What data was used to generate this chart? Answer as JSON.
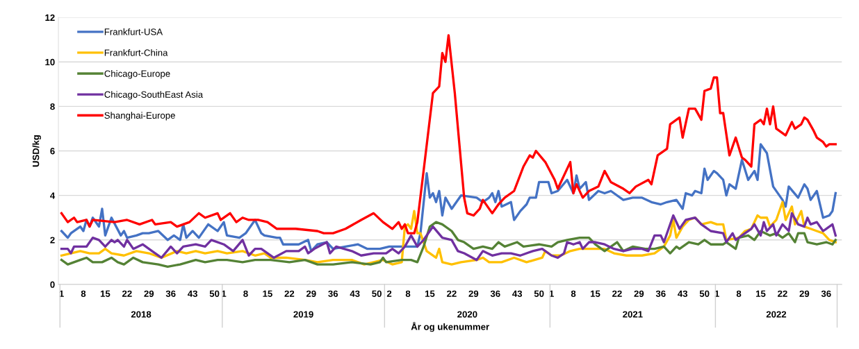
{
  "chart_data": {
    "type": "line",
    "xlabel": "År og ukenummer",
    "ylabel": "USD/kg",
    "ylim": [
      0,
      12
    ],
    "yticks": [
      0,
      2,
      4,
      6,
      8,
      10,
      12
    ],
    "categories": [
      "1",
      null,
      null,
      null,
      null,
      null,
      null,
      "8",
      null,
      null,
      null,
      null,
      null,
      null,
      "15",
      null,
      null,
      null,
      null,
      null,
      null,
      "22",
      null,
      null,
      null,
      null,
      null,
      null,
      "29",
      null,
      null,
      null,
      null,
      null,
      null,
      "36",
      null,
      null,
      null,
      null,
      null,
      null,
      "43",
      null,
      null,
      null,
      null,
      null,
      null,
      "50",
      null,
      null,
      "1",
      null,
      null,
      null,
      null,
      null,
      null,
      "8",
      null,
      null,
      null,
      null,
      null,
      null,
      "15",
      null,
      null,
      null,
      null,
      null,
      null,
      "22",
      null,
      null,
      null,
      null,
      null,
      null,
      "29",
      null,
      null,
      null,
      null,
      null,
      null,
      "36",
      null,
      null,
      null,
      null,
      null,
      null,
      "43",
      null,
      null,
      null,
      null,
      null,
      null,
      "50",
      null,
      null,
      null,
      "2",
      null,
      null,
      null,
      null,
      null,
      "8",
      null,
      null,
      null,
      null,
      null,
      null,
      "15",
      null,
      null,
      null,
      null,
      null,
      null,
      "22",
      null,
      null,
      null,
      null,
      null,
      null,
      "29",
      null,
      null,
      null,
      null,
      null,
      null,
      "36",
      null,
      null,
      null,
      null,
      null,
      null,
      "43",
      null,
      null,
      null,
      null,
      null,
      null,
      "50",
      null,
      null,
      null,
      "1",
      null,
      null,
      null,
      null,
      null,
      null,
      "8",
      null,
      null,
      null,
      null,
      null,
      null,
      "15",
      null,
      null,
      null,
      null,
      null,
      null,
      "22",
      null,
      null,
      null,
      null,
      null,
      null,
      "29",
      null,
      null,
      null,
      null,
      null,
      null,
      "36",
      null,
      null,
      null,
      null,
      null,
      null,
      "43",
      null,
      null,
      null,
      null,
      null,
      null,
      "50",
      null,
      null,
      null,
      "1",
      null,
      null,
      null,
      null,
      null,
      null,
      "8",
      null,
      null,
      null,
      null,
      null,
      null,
      "15",
      null,
      null,
      null,
      null,
      null,
      null,
      "22",
      null,
      null,
      null,
      null,
      null,
      null,
      "29",
      null,
      null,
      null,
      null,
      null,
      null,
      "36",
      null,
      null,
      null
    ],
    "annotations": [
      "2018",
      "2019",
      "2020",
      "2021",
      "2022"
    ],
    "grid": "y",
    "legend": "top left",
    "marker": "none",
    "line_style": "solid",
    "series": [
      {
        "name": "Frankfurt-USA",
        "color": "#4472c4",
        "values": [
          2.4,
          null,
          2.1,
          2.3,
          null,
          null,
          2.6,
          2.4,
          2.9,
          2.6,
          3.0,
          null,
          2.6,
          3.4,
          2.2,
          null,
          3.0,
          null,
          null,
          2.2,
          2.4,
          2.1,
          null,
          null,
          2.2,
          null,
          2.3,
          null,
          2.3,
          null,
          null,
          2.4,
          null,
          null,
          2.0,
          null,
          2.2,
          null,
          2.0,
          2.7,
          2.1,
          null,
          2.4,
          null,
          2.1,
          null,
          null,
          2.7,
          null,
          null,
          2.4,
          null,
          2.8,
          2.2,
          null,
          null,
          null,
          2.1,
          null,
          2.3,
          null,
          null,
          2.9,
          null,
          2.3,
          2.2,
          null,
          null,
          null,
          2.1,
          2.1,
          1.8,
          null,
          null,
          1.8,
          null,
          1.8,
          null,
          null,
          2.0,
          1.5,
          null,
          1.8,
          null,
          null,
          1.9,
          null,
          1.6,
          null,
          null,
          null,
          1.7,
          null,
          null,
          null,
          1.8,
          null,
          null,
          1.6,
          null,
          null,
          null,
          1.6,
          null,
          null,
          1.7,
          null,
          null,
          1.7,
          null,
          null,
          null,
          1.7,
          null,
          1.7,
          2.3,
          null,
          5.0,
          3.9,
          4.1,
          3.7,
          4.2,
          3.1,
          3.9,
          null,
          3.4,
          3.6,
          null,
          4.0,
          null,
          null,
          null,
          null,
          3.9,
          null,
          3.7,
          null,
          3.9,
          4.1,
          3.7,
          4.2,
          3.5,
          null,
          null,
          3.7,
          2.9,
          null,
          3.3,
          null,
          3.6,
          3.9,
          null,
          3.9,
          4.6,
          null,
          null,
          4.6,
          4.1,
          null,
          4.2,
          null,
          null,
          4.7,
          null,
          4.1,
          4.9,
          4.3,
          null,
          4.6,
          3.8,
          null,
          null,
          4.2,
          null,
          4.1,
          null,
          4.2,
          null,
          null,
          null,
          3.8,
          null,
          null,
          3.9,
          null,
          null,
          3.9,
          null,
          null,
          3.7,
          null,
          null,
          3.6,
          null,
          3.7,
          null,
          null,
          3.8,
          null,
          3.4,
          4.1,
          null,
          4.0,
          4.2,
          null,
          4.1,
          5.2,
          4.7,
          null,
          5.1,
          5.0,
          null,
          4.7,
          4.0,
          4.5,
          null,
          4.3,
          null,
          5.6,
          null,
          4.7,
          null,
          5.1,
          4.7,
          6.3,
          null,
          5.9,
          null,
          4.4,
          null,
          null,
          3.8,
          3.5,
          4.4,
          null,
          null,
          3.9,
          null,
          4.5,
          4.3,
          3.8,
          null,
          4.2,
          null,
          3.0,
          null,
          3.1,
          3.3,
          4.1
        ]
      },
      {
        "name": "Frankfurt-China",
        "color": "#ffc000",
        "values": [
          1.3,
          null,
          null,
          1.4,
          null,
          null,
          1.5,
          null,
          null,
          1.4,
          null,
          null,
          1.4,
          null,
          1.6,
          null,
          1.4,
          null,
          null,
          null,
          1.3,
          null,
          null,
          null,
          1.5,
          null,
          null,
          null,
          1.4,
          null,
          null,
          null,
          1.2,
          null,
          null,
          null,
          null,
          1.5,
          null,
          null,
          1.4,
          null,
          null,
          1.5,
          null,
          null,
          1.4,
          null,
          null,
          null,
          1.5,
          null,
          null,
          1.4,
          null,
          null,
          null,
          null,
          1.5,
          null,
          null,
          null,
          1.3,
          null,
          null,
          1.4,
          null,
          1.2,
          null,
          null,
          null,
          null,
          1.2,
          null,
          null,
          null,
          null,
          null,
          1.1,
          null,
          null,
          null,
          1.0,
          null,
          null,
          null,
          null,
          1.1,
          null,
          null,
          null,
          null,
          null,
          1.1,
          null,
          null,
          null,
          0.9,
          null,
          null,
          1.0,
          null,
          null,
          1.1,
          null,
          null,
          0.9,
          null,
          null,
          1.0,
          2.6,
          2.7,
          2.5,
          3.3,
          2.3,
          2.3,
          null,
          1.5,
          null,
          null,
          1.2,
          1.6,
          1.0,
          null,
          null,
          0.9,
          null,
          null,
          1.0,
          null,
          null,
          null,
          null,
          1.1,
          null,
          1.2,
          null,
          1.0,
          null,
          null,
          null,
          1.0,
          null,
          null,
          null,
          1.2,
          null,
          null,
          null,
          1.0,
          null,
          null,
          null,
          null,
          1.2,
          1.5,
          null,
          1.3,
          null,
          null,
          1.3,
          null,
          null,
          1.5,
          null,
          null,
          1.6,
          null,
          null,
          null,
          1.6,
          null,
          null,
          null,
          1.6,
          null,
          null,
          1.4,
          null,
          null,
          null,
          1.3,
          null,
          null,
          null,
          null,
          1.3,
          null,
          null,
          null,
          1.4,
          null,
          null,
          1.7,
          null,
          2.2,
          2.9,
          2.1,
          null,
          2.6,
          null,
          2.9,
          null,
          3.0,
          null,
          2.7,
          null,
          null,
          2.8,
          null,
          2.7,
          null,
          2.7,
          2.0,
          null,
          null,
          null,
          2.1,
          null,
          2.4,
          null,
          2.5,
          null,
          3.1,
          3.0,
          null,
          3.0,
          2.6,
          null,
          2.9,
          null,
          3.7,
          2.9,
          null,
          3.5,
          2.7,
          null,
          3.3,
          2.6,
          null,
          2.5,
          null,
          2.4,
          null,
          2.3,
          null,
          2.0,
          null,
          1.9
        ]
      },
      {
        "name": "Chicago-Europe",
        "color": "#548235",
        "values": [
          1.1,
          null,
          0.9,
          null,
          null,
          null,
          1.1,
          null,
          1.2,
          null,
          1.0,
          null,
          null,
          1.0,
          null,
          null,
          1.2,
          null,
          1.0,
          null,
          0.9,
          null,
          null,
          1.2,
          null,
          null,
          1.0,
          null,
          null,
          null,
          null,
          0.9,
          null,
          null,
          0.8,
          null,
          null,
          null,
          0.9,
          null,
          null,
          null,
          null,
          1.1,
          null,
          null,
          1.0,
          null,
          null,
          null,
          1.1,
          null,
          null,
          1.1,
          null,
          null,
          null,
          null,
          1.0,
          null,
          null,
          null,
          1.1,
          null,
          null,
          null,
          null,
          1.1,
          null,
          null,
          null,
          null,
          null,
          1.0,
          null,
          null,
          null,
          null,
          1.1,
          null,
          null,
          null,
          0.9,
          null,
          null,
          null,
          null,
          0.9,
          null,
          null,
          null,
          null,
          null,
          1.0,
          null,
          null,
          null,
          null,
          null,
          0.9,
          null,
          null,
          1.0,
          1.2,
          1.0,
          null,
          null,
          null,
          null,
          1.1,
          null,
          null,
          1.1,
          null,
          1.0,
          null,
          1.7,
          null,
          2.6,
          null,
          2.8,
          null,
          2.7,
          null,
          null,
          2.4,
          null,
          2.0,
          null,
          1.9,
          null,
          null,
          1.6,
          null,
          null,
          1.7,
          null,
          null,
          1.6,
          null,
          1.9,
          null,
          1.7,
          null,
          null,
          null,
          1.9,
          null,
          1.7,
          null,
          null,
          null,
          null,
          1.8,
          null,
          null,
          null,
          1.7,
          null,
          1.9,
          null,
          null,
          2.0,
          null,
          null,
          null,
          2.1,
          null,
          null,
          2.1,
          null,
          1.8,
          null,
          null,
          1.5,
          null,
          null,
          null,
          1.9,
          null,
          1.5,
          null,
          null,
          1.7,
          null,
          null,
          null,
          1.6,
          null,
          null,
          1.6,
          null,
          null,
          1.7,
          null,
          1.4,
          null,
          1.7,
          1.6,
          null,
          null,
          1.9,
          null,
          null,
          1.8,
          null,
          2.0,
          null,
          1.8,
          null,
          null,
          null,
          1.8,
          1.9,
          null,
          null,
          1.6,
          2.1,
          null,
          null,
          2.2,
          null,
          2.0,
          null,
          2.4,
          null,
          null,
          2.2,
          null,
          2.3,
          null,
          2.1,
          null,
          2.3,
          null,
          1.9,
          2.3,
          null,
          2.3,
          1.9,
          null,
          null,
          1.8,
          null,
          null,
          1.9,
          null,
          1.8,
          2.0
        ]
      },
      {
        "name": "Chicago-SouthEast Asia",
        "color": "#7030a0",
        "values": [
          1.6,
          null,
          1.6,
          1.4,
          1.7,
          null,
          null,
          null,
          1.7,
          null,
          2.1,
          null,
          2.0,
          null,
          1.7,
          null,
          2.0,
          1.9,
          2.0,
          null,
          1.7,
          2.0,
          null,
          1.6,
          null,
          null,
          1.8,
          null,
          null,
          1.5,
          null,
          null,
          1.2,
          null,
          null,
          1.7,
          null,
          1.4,
          null,
          1.7,
          null,
          null,
          null,
          1.8,
          null,
          null,
          1.7,
          null,
          2.0,
          null,
          null,
          null,
          1.8,
          null,
          null,
          1.5,
          null,
          null,
          2.0,
          null,
          1.3,
          null,
          1.6,
          null,
          1.6,
          null,
          null,
          null,
          1.2,
          null,
          null,
          null,
          1.5,
          null,
          null,
          null,
          1.5,
          null,
          1.7,
          1.4,
          null,
          1.6,
          null,
          null,
          null,
          1.9,
          1.4,
          null,
          1.7,
          null,
          null,
          null,
          null,
          1.5,
          null,
          null,
          1.3,
          null,
          null,
          null,
          1.4,
          null,
          null,
          null,
          1.4,
          null,
          1.6,
          null,
          1.4,
          null,
          1.7,
          null,
          2.2,
          null,
          1.7,
          null,
          2.0,
          null,
          null,
          2.6,
          null,
          null,
          2.1,
          null,
          null,
          2.0,
          null,
          1.5,
          null,
          1.4,
          null,
          null,
          null,
          1.1,
          null,
          1.5,
          null,
          null,
          1.3,
          null,
          null,
          1.4,
          null,
          null,
          1.4,
          null,
          null,
          1.3,
          null,
          null,
          null,
          1.5,
          null,
          null,
          1.6,
          null,
          null,
          1.3,
          null,
          1.2,
          null,
          1.4,
          1.9,
          null,
          1.8,
          null,
          1.9,
          1.6,
          null,
          1.9,
          null,
          1.9,
          null,
          null,
          1.8,
          null,
          null,
          1.6,
          null,
          null,
          1.5,
          null,
          null,
          1.6,
          null,
          null,
          1.6,
          null,
          1.5,
          null,
          2.2,
          null,
          2.2,
          1.9,
          null,
          null,
          3.1,
          null,
          2.5,
          null,
          2.9,
          null,
          null,
          3.0,
          null,
          2.7,
          null,
          null,
          2.4,
          null,
          null,
          null,
          2.3,
          1.9,
          null,
          2.3,
          2.0,
          null,
          null,
          2.3,
          null,
          2.5,
          2.7,
          null,
          2.2,
          2.8,
          2.4,
          null,
          2.7,
          2.2,
          null,
          2.7,
          null,
          2.4,
          3.2,
          null,
          2.7,
          null,
          2.6,
          3.0,
          2.7,
          null,
          2.8,
          null,
          2.4,
          2.5,
          null,
          2.7,
          2.2
        ]
      },
      {
        "name": "Shanghai-Europe",
        "color": "#ff0000",
        "values": [
          3.2,
          null,
          2.8,
          null,
          3.0,
          2.8,
          null,
          null,
          2.9,
          2.6,
          2.9,
          null,
          null,
          null,
          null,
          null,
          null,
          2.8,
          null,
          null,
          null,
          2.9,
          null,
          null,
          null,
          2.7,
          null,
          null,
          null,
          2.9,
          2.7,
          null,
          null,
          null,
          null,
          2.8,
          null,
          2.6,
          null,
          null,
          null,
          2.8,
          null,
          null,
          3.2,
          null,
          3.0,
          null,
          null,
          null,
          3.2,
          2.9,
          null,
          null,
          3.2,
          null,
          2.8,
          null,
          3.0,
          null,
          2.9,
          null,
          null,
          2.9,
          null,
          null,
          2.8,
          null,
          null,
          2.5,
          null,
          null,
          null,
          null,
          null,
          2.5,
          null,
          null,
          null,
          null,
          null,
          null,
          2.4,
          null,
          2.3,
          null,
          null,
          2.3,
          null,
          null,
          null,
          2.5,
          null,
          null,
          null,
          null,
          2.9,
          null,
          null,
          null,
          3.2,
          null,
          null,
          2.8,
          null,
          null,
          2.5,
          null,
          2.8,
          2.5,
          2.7,
          2.3,
          null,
          2.3,
          2.8,
          null,
          5.1,
          null,
          null,
          8.6,
          null,
          8.9,
          10.4,
          10.0,
          11.2,
          null,
          8.6,
          null,
          null,
          3.9,
          3.2,
          null,
          3.1,
          null,
          3.4,
          3.8,
          null,
          null,
          3.2,
          null,
          3.6,
          null,
          3.9,
          null,
          null,
          4.2,
          null,
          null,
          5.3,
          null,
          5.8,
          5.7,
          6.0,
          null,
          null,
          5.5,
          null,
          null,
          4.7,
          4.3,
          null,
          null,
          null,
          5.5,
          4.1,
          4.5,
          null,
          3.9,
          null,
          4.2,
          null,
          null,
          4.4,
          null,
          5.1,
          null,
          4.6,
          null,
          null,
          null,
          4.3,
          null,
          4.1,
          null,
          4.4,
          null,
          null,
          null,
          4.7,
          4.5,
          null,
          5.8,
          null,
          null,
          6.1,
          7.2,
          null,
          null,
          7.5,
          6.6,
          null,
          7.9,
          null,
          7.9,
          null,
          7.4,
          8.7,
          null,
          8.8,
          9.3,
          9.3,
          7.7,
          7.7,
          null,
          5.8,
          null,
          6.6,
          null,
          5.7,
          5.6,
          null,
          5.3,
          7.2,
          null,
          7.4,
          7.2,
          7.9,
          7.2,
          8.0,
          7.0,
          null,
          null,
          6.7,
          null,
          7.3,
          7.0,
          null,
          7.2,
          7.5,
          7.4,
          null,
          6.9,
          6.6,
          null,
          6.4,
          6.2,
          6.3,
          null,
          6.3
        ]
      }
    ]
  }
}
